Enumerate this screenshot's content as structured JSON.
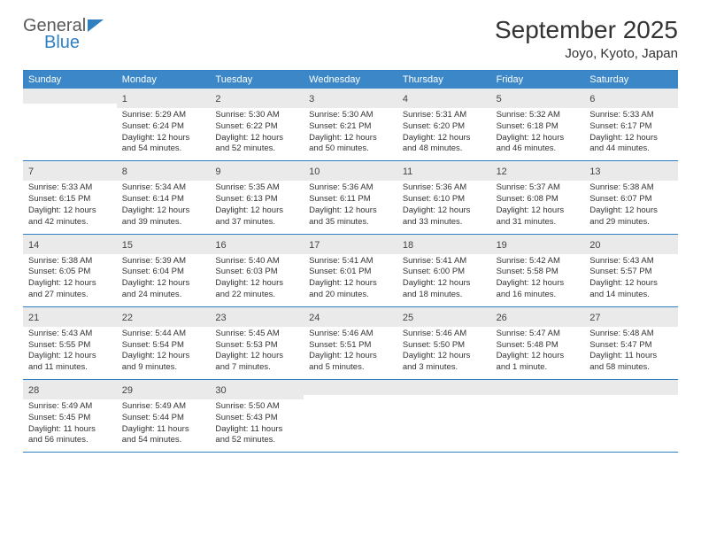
{
  "logo": {
    "text1": "General",
    "text2": "Blue"
  },
  "title": "September 2025",
  "location": "Joyo, Kyoto, Japan",
  "weekdays": [
    "Sunday",
    "Monday",
    "Tuesday",
    "Wednesday",
    "Thursday",
    "Friday",
    "Saturday"
  ],
  "colors": {
    "header_bg": "#3b87c8",
    "rule": "#2f7fc3",
    "daynum_bg": "#eaeaea",
    "text": "#333333",
    "body_fontsize": 9.5
  },
  "weeks": [
    [
      {
        "n": "",
        "sr": "",
        "ss": "",
        "dl": ""
      },
      {
        "n": "1",
        "sr": "Sunrise: 5:29 AM",
        "ss": "Sunset: 6:24 PM",
        "dl": "Daylight: 12 hours and 54 minutes."
      },
      {
        "n": "2",
        "sr": "Sunrise: 5:30 AM",
        "ss": "Sunset: 6:22 PM",
        "dl": "Daylight: 12 hours and 52 minutes."
      },
      {
        "n": "3",
        "sr": "Sunrise: 5:30 AM",
        "ss": "Sunset: 6:21 PM",
        "dl": "Daylight: 12 hours and 50 minutes."
      },
      {
        "n": "4",
        "sr": "Sunrise: 5:31 AM",
        "ss": "Sunset: 6:20 PM",
        "dl": "Daylight: 12 hours and 48 minutes."
      },
      {
        "n": "5",
        "sr": "Sunrise: 5:32 AM",
        "ss": "Sunset: 6:18 PM",
        "dl": "Daylight: 12 hours and 46 minutes."
      },
      {
        "n": "6",
        "sr": "Sunrise: 5:33 AM",
        "ss": "Sunset: 6:17 PM",
        "dl": "Daylight: 12 hours and 44 minutes."
      }
    ],
    [
      {
        "n": "7",
        "sr": "Sunrise: 5:33 AM",
        "ss": "Sunset: 6:15 PM",
        "dl": "Daylight: 12 hours and 42 minutes."
      },
      {
        "n": "8",
        "sr": "Sunrise: 5:34 AM",
        "ss": "Sunset: 6:14 PM",
        "dl": "Daylight: 12 hours and 39 minutes."
      },
      {
        "n": "9",
        "sr": "Sunrise: 5:35 AM",
        "ss": "Sunset: 6:13 PM",
        "dl": "Daylight: 12 hours and 37 minutes."
      },
      {
        "n": "10",
        "sr": "Sunrise: 5:36 AM",
        "ss": "Sunset: 6:11 PM",
        "dl": "Daylight: 12 hours and 35 minutes."
      },
      {
        "n": "11",
        "sr": "Sunrise: 5:36 AM",
        "ss": "Sunset: 6:10 PM",
        "dl": "Daylight: 12 hours and 33 minutes."
      },
      {
        "n": "12",
        "sr": "Sunrise: 5:37 AM",
        "ss": "Sunset: 6:08 PM",
        "dl": "Daylight: 12 hours and 31 minutes."
      },
      {
        "n": "13",
        "sr": "Sunrise: 5:38 AM",
        "ss": "Sunset: 6:07 PM",
        "dl": "Daylight: 12 hours and 29 minutes."
      }
    ],
    [
      {
        "n": "14",
        "sr": "Sunrise: 5:38 AM",
        "ss": "Sunset: 6:05 PM",
        "dl": "Daylight: 12 hours and 27 minutes."
      },
      {
        "n": "15",
        "sr": "Sunrise: 5:39 AM",
        "ss": "Sunset: 6:04 PM",
        "dl": "Daylight: 12 hours and 24 minutes."
      },
      {
        "n": "16",
        "sr": "Sunrise: 5:40 AM",
        "ss": "Sunset: 6:03 PM",
        "dl": "Daylight: 12 hours and 22 minutes."
      },
      {
        "n": "17",
        "sr": "Sunrise: 5:41 AM",
        "ss": "Sunset: 6:01 PM",
        "dl": "Daylight: 12 hours and 20 minutes."
      },
      {
        "n": "18",
        "sr": "Sunrise: 5:41 AM",
        "ss": "Sunset: 6:00 PM",
        "dl": "Daylight: 12 hours and 18 minutes."
      },
      {
        "n": "19",
        "sr": "Sunrise: 5:42 AM",
        "ss": "Sunset: 5:58 PM",
        "dl": "Daylight: 12 hours and 16 minutes."
      },
      {
        "n": "20",
        "sr": "Sunrise: 5:43 AM",
        "ss": "Sunset: 5:57 PM",
        "dl": "Daylight: 12 hours and 14 minutes."
      }
    ],
    [
      {
        "n": "21",
        "sr": "Sunrise: 5:43 AM",
        "ss": "Sunset: 5:55 PM",
        "dl": "Daylight: 12 hours and 11 minutes."
      },
      {
        "n": "22",
        "sr": "Sunrise: 5:44 AM",
        "ss": "Sunset: 5:54 PM",
        "dl": "Daylight: 12 hours and 9 minutes."
      },
      {
        "n": "23",
        "sr": "Sunrise: 5:45 AM",
        "ss": "Sunset: 5:53 PM",
        "dl": "Daylight: 12 hours and 7 minutes."
      },
      {
        "n": "24",
        "sr": "Sunrise: 5:46 AM",
        "ss": "Sunset: 5:51 PM",
        "dl": "Daylight: 12 hours and 5 minutes."
      },
      {
        "n": "25",
        "sr": "Sunrise: 5:46 AM",
        "ss": "Sunset: 5:50 PM",
        "dl": "Daylight: 12 hours and 3 minutes."
      },
      {
        "n": "26",
        "sr": "Sunrise: 5:47 AM",
        "ss": "Sunset: 5:48 PM",
        "dl": "Daylight: 12 hours and 1 minute."
      },
      {
        "n": "27",
        "sr": "Sunrise: 5:48 AM",
        "ss": "Sunset: 5:47 PM",
        "dl": "Daylight: 11 hours and 58 minutes."
      }
    ],
    [
      {
        "n": "28",
        "sr": "Sunrise: 5:49 AM",
        "ss": "Sunset: 5:45 PM",
        "dl": "Daylight: 11 hours and 56 minutes."
      },
      {
        "n": "29",
        "sr": "Sunrise: 5:49 AM",
        "ss": "Sunset: 5:44 PM",
        "dl": "Daylight: 11 hours and 54 minutes."
      },
      {
        "n": "30",
        "sr": "Sunrise: 5:50 AM",
        "ss": "Sunset: 5:43 PM",
        "dl": "Daylight: 11 hours and 52 minutes."
      },
      {
        "n": "",
        "sr": "",
        "ss": "",
        "dl": ""
      },
      {
        "n": "",
        "sr": "",
        "ss": "",
        "dl": ""
      },
      {
        "n": "",
        "sr": "",
        "ss": "",
        "dl": ""
      },
      {
        "n": "",
        "sr": "",
        "ss": "",
        "dl": ""
      }
    ]
  ]
}
